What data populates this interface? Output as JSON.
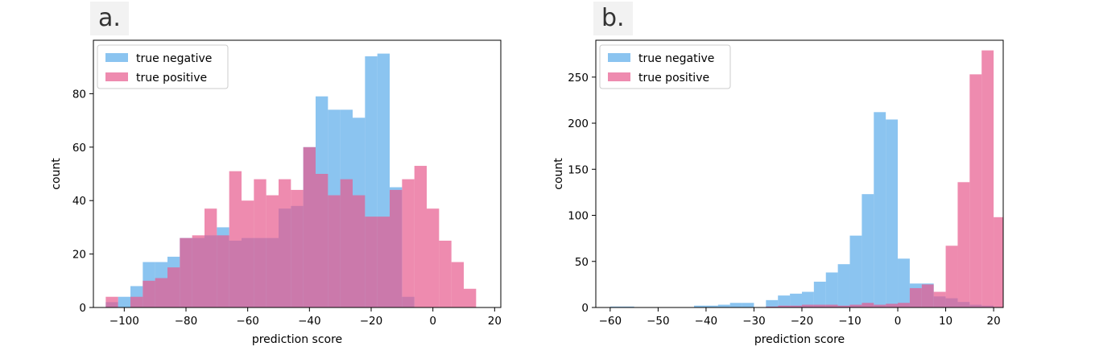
{
  "panels": [
    {
      "label": "a."
    },
    {
      "label": "b."
    }
  ],
  "colors": {
    "true_negative": "#5aabea",
    "true_positive": "#e75a8d",
    "bar_alpha": 0.7
  },
  "chart_data": [
    {
      "type": "bar",
      "histogram": true,
      "xlabel": "prediction score",
      "ylabel": "count",
      "xlim": [
        -110,
        22
      ],
      "ylim": [
        0,
        100
      ],
      "xticks": [
        -100,
        -80,
        -60,
        -40,
        -20,
        0,
        20
      ],
      "yticks": [
        0,
        20,
        40,
        60,
        80
      ],
      "grid": false,
      "legend_position": "top-left",
      "series": [
        {
          "name": "true negative",
          "color": "#5aabea",
          "bin_width": 4,
          "bin_start": -106,
          "values": [
            2,
            4,
            8,
            17,
            17,
            19,
            26,
            26,
            27,
            30,
            25,
            26,
            26,
            26,
            37,
            38,
            60,
            79,
            74,
            74,
            71,
            94,
            95,
            45,
            4
          ]
        },
        {
          "name": "true positive",
          "color": "#e75a8d",
          "bin_width": 4,
          "bin_start": -106,
          "values": [
            4,
            0,
            4,
            10,
            11,
            15,
            26,
            27,
            37,
            27,
            51,
            40,
            48,
            42,
            48,
            44,
            60,
            50,
            42,
            48,
            42,
            34,
            34,
            44,
            48,
            53,
            37,
            25,
            17,
            7
          ]
        }
      ]
    },
    {
      "type": "bar",
      "histogram": true,
      "xlabel": "prediction score",
      "ylabel": "count",
      "xlim": [
        -63,
        22
      ],
      "ylim": [
        0,
        290
      ],
      "xticks": [
        -60,
        -50,
        -40,
        -30,
        -20,
        -10,
        0,
        10,
        20
      ],
      "yticks": [
        0,
        50,
        100,
        150,
        200,
        250
      ],
      "grid": false,
      "legend_position": "top-left",
      "series": [
        {
          "name": "true negative",
          "color": "#5aabea",
          "bin_width": 2.5,
          "bin_start": -60,
          "values": [
            1,
            1,
            0,
            0,
            0,
            0,
            0,
            2,
            2,
            3,
            5,
            5,
            0,
            8,
            13,
            15,
            17,
            28,
            38,
            47,
            78,
            123,
            212,
            204,
            53,
            26,
            26,
            12,
            10,
            6,
            3,
            2
          ]
        },
        {
          "name": "true positive",
          "color": "#e75a8d",
          "bin_width": 2.5,
          "bin_start": -30,
          "values": [
            0,
            1,
            2,
            2,
            3,
            3,
            3,
            2,
            3,
            5,
            3,
            4,
            5,
            21,
            25,
            17,
            67,
            136,
            253,
            279,
            98,
            8
          ]
        }
      ]
    }
  ]
}
